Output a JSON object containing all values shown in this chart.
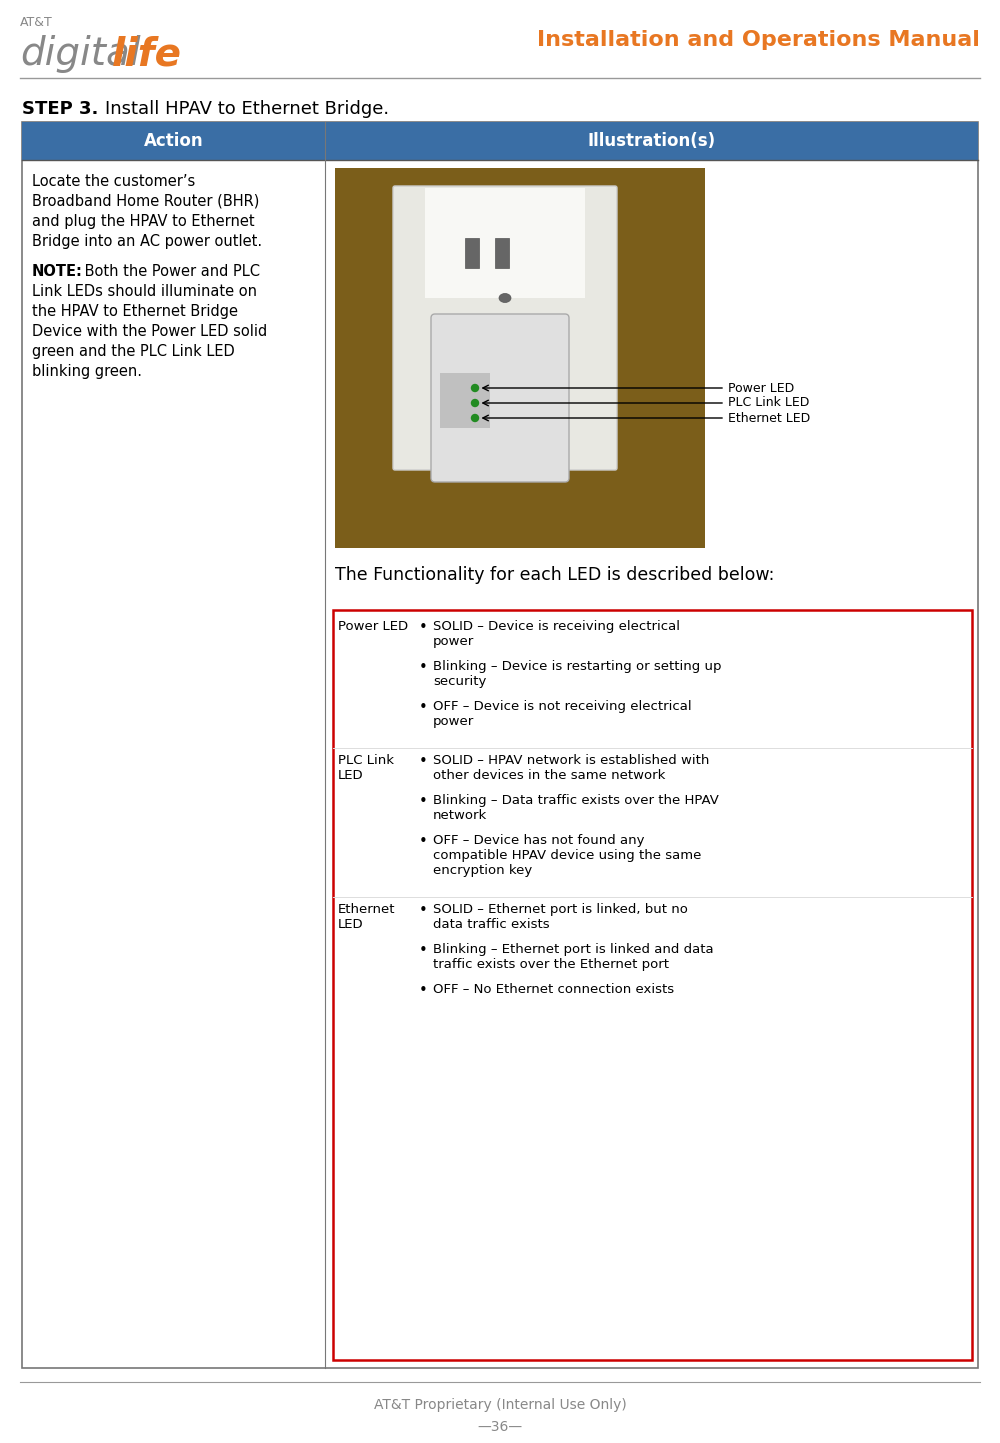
{
  "title_header": "Installation and Operations Manual",
  "header_color": "#E87722",
  "logo_gray": "#888888",
  "step_label": "STEP 3.",
  "step_title": "    Install HPAV to Ethernet Bridge.",
  "table_header_bg": "#3A6EA5",
  "table_header_color": "#FFFFFF",
  "col1_header": "Action",
  "col2_header": "Illustration(s)",
  "action_lines": [
    "Locate the customer’s",
    "Broadband Home Router (BHR)",
    "and plug the HPAV to Ethernet",
    "Bridge into an AC power outlet."
  ],
  "note_prefix": "NOTE:",
  "note_rest_lines": [
    " Both the Power and PLC",
    "Link LEDs should illuminate on",
    "the HPAV to Ethernet Bridge",
    "Device with the Power LED solid",
    "green and the PLC Link LED",
    "blinking green."
  ],
  "functionality_header": "The Functionality for each LED is described below:",
  "led_table_border": "#CC0000",
  "led_sections": [
    {
      "label": "Power LED",
      "bullets": [
        "SOLID – Device is receiving electrical\npower",
        "Blinking – Device is restarting or setting up\nsecurity",
        "OFF – Device is not receiving electrical\npower"
      ]
    },
    {
      "label": "PLC Link\nLED",
      "bullets": [
        "SOLID – HPAV network is established with\nother devices in the same network",
        "Blinking – Data traffic exists over the HPAV\nnetwork",
        "OFF – Device has not found any\ncompatible HPAV device using the same\nencryption key"
      ]
    },
    {
      "label": "Ethernet\nLED",
      "bullets": [
        "SOLID – Ethernet port is linked, but no\ndata traffic exists",
        "Blinking – Ethernet port is linked and data\ntraffic exists over the Ethernet port",
        "OFF – No Ethernet connection exists"
      ]
    }
  ],
  "footer_text": "AT&T Proprietary (Internal Use Only)",
  "page_number": "—36—",
  "footer_color": "#888888",
  "divider_color": "#999999",
  "body_bg": "#FFFFFF",
  "table_border_color": "#777777",
  "fig_width": 10.0,
  "fig_height": 14.43
}
